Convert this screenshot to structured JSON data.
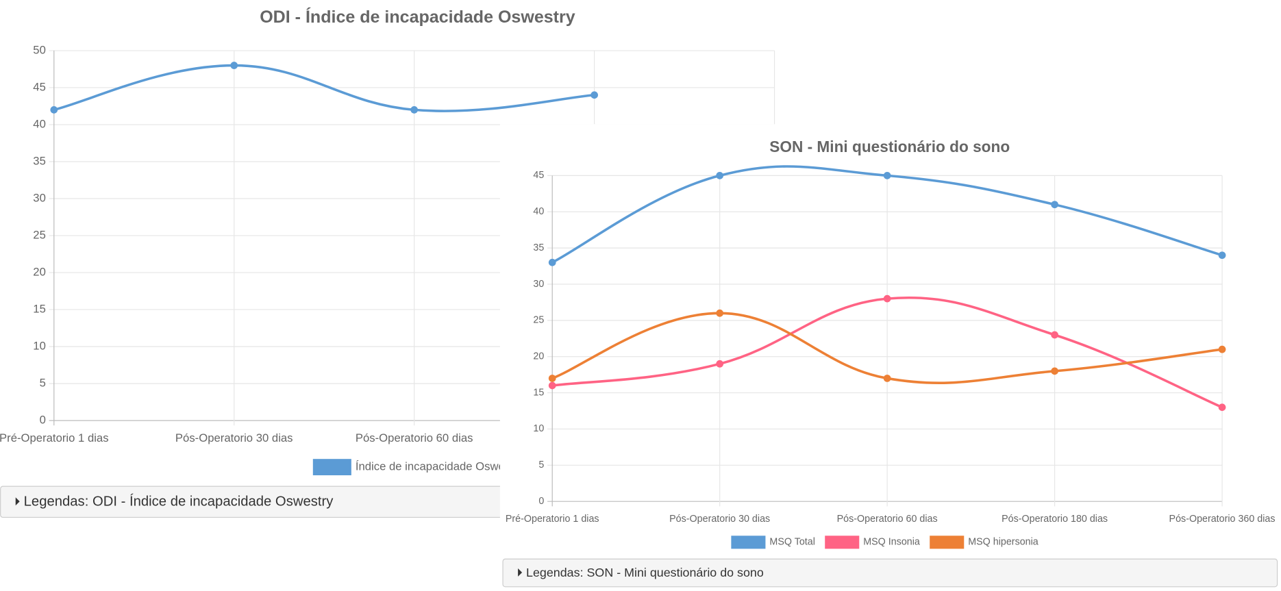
{
  "chart_data": [
    {
      "type": "line",
      "title": "ODI - Índice de incapacidade Oswestry",
      "categories": [
        "Pré-Operatorio 1 dias",
        "Pós-Operatorio 30 dias",
        "Pós-Operatorio 60 dias",
        null,
        null
      ],
      "series": [
        {
          "name": "Índice de incapacidade Oswestry",
          "color": "#5b9bd5",
          "values": [
            42,
            48,
            42,
            44,
            null
          ]
        }
      ],
      "ylim": [
        0,
        50
      ],
      "yticks": [
        0,
        5,
        10,
        15,
        20,
        25,
        30,
        35,
        40,
        45,
        50
      ],
      "grid": true,
      "legend": "bottom"
    },
    {
      "type": "line",
      "title": "SON - Mini questionário do sono",
      "categories": [
        "Pré-Operatorio 1 dias",
        "Pós-Operatorio 30 dias",
        "Pós-Operatorio 60 dias",
        "Pós-Operatorio 180 dias",
        "Pós-Operatorio 360 dias"
      ],
      "series": [
        {
          "name": "MSQ Total",
          "color": "#5b9bd5",
          "values": [
            33,
            45,
            45,
            41,
            34
          ]
        },
        {
          "name": "MSQ Insonia",
          "color": "#ff6384",
          "values": [
            16,
            19,
            28,
            23,
            13
          ]
        },
        {
          "name": "MSQ hipersonia",
          "color": "#ed8035",
          "values": [
            17,
            26,
            17,
            18,
            21
          ]
        }
      ],
      "ylim": [
        0,
        45
      ],
      "yticks": [
        0,
        5,
        10,
        15,
        20,
        25,
        30,
        35,
        40,
        45
      ],
      "grid": true,
      "legend": "bottom"
    }
  ],
  "legend_toggles": [
    "Legendas: ODI - Índice de incapacidade Oswestry",
    "Legendas: SON - Mini questionário do sono"
  ]
}
